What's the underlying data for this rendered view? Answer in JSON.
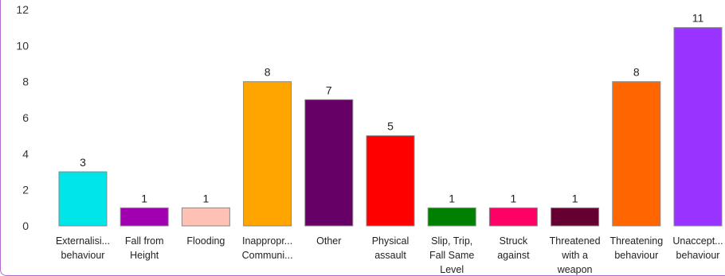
{
  "chart_data": {
    "type": "bar",
    "categories": [
      [
        "Externalisi...",
        "behaviour"
      ],
      [
        "Fall from",
        "Height"
      ],
      [
        "Flooding"
      ],
      [
        "Inappropr...",
        "Communi..."
      ],
      [
        "Other"
      ],
      [
        "Physical",
        "assault"
      ],
      [
        "Slip, Trip,",
        "Fall Same",
        "Level"
      ],
      [
        "Struck",
        "against"
      ],
      [
        "Threatened",
        "with a",
        "weapon"
      ],
      [
        "Threatening",
        "behaviour"
      ],
      [
        "Unaccept...",
        "behaviour"
      ]
    ],
    "values": [
      3,
      1,
      1,
      8,
      7,
      5,
      1,
      1,
      1,
      8,
      11
    ],
    "colors": [
      "#00e5e8",
      "#a000b0",
      "#ffc1b3",
      "#ffa500",
      "#660066",
      "#ff0000",
      "#008000",
      "#ff0066",
      "#660033",
      "#ff6600",
      "#9933ff"
    ],
    "ylim": [
      0,
      12
    ],
    "yticks": [
      0,
      2,
      4,
      6,
      8,
      10,
      12
    ],
    "data_labels": true,
    "grid": false,
    "legend": "none",
    "title": "",
    "xlabel": "",
    "ylabel": ""
  }
}
